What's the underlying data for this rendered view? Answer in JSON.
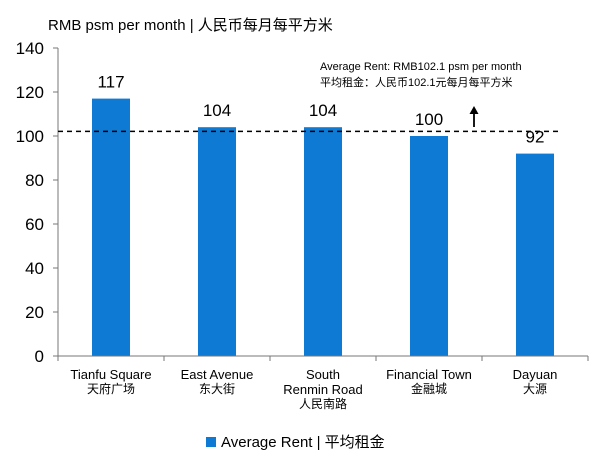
{
  "unit_title": "RMB psm per month  | 人民币每月每平方米",
  "annotation": {
    "line1": "Average Rent: RMB102.1 psm per month",
    "line2": "平均租金：人民币102.1元每月每平方米"
  },
  "legend": {
    "label": "Average Rent | 平均租金"
  },
  "colors": {
    "bar": "#0f7ad3",
    "axis": "#777777",
    "reference_line": "#000000"
  },
  "chart_data": {
    "type": "bar",
    "categories": [
      {
        "en": "Tianfu Square",
        "zh": "天府广场"
      },
      {
        "en": "East Avenue",
        "zh": "东大街"
      },
      {
        "en": "South Renmin Road",
        "zh": "人民南路"
      },
      {
        "en": "Financial Town",
        "zh": "金融城"
      },
      {
        "en": "Dayuan",
        "zh": "大源"
      }
    ],
    "series": [
      {
        "name": "Average Rent | 平均租金",
        "values": [
          117,
          104,
          104,
          100,
          92
        ]
      }
    ],
    "data_labels": [
      "117",
      "104",
      "104",
      "100",
      "92"
    ],
    "reference_line": {
      "value": 102.1,
      "style": "dashed"
    },
    "ylim": [
      0,
      140
    ],
    "yticks": [
      0,
      20,
      40,
      60,
      80,
      100,
      120,
      140
    ],
    "grid": false,
    "legend_position": "bottom"
  }
}
